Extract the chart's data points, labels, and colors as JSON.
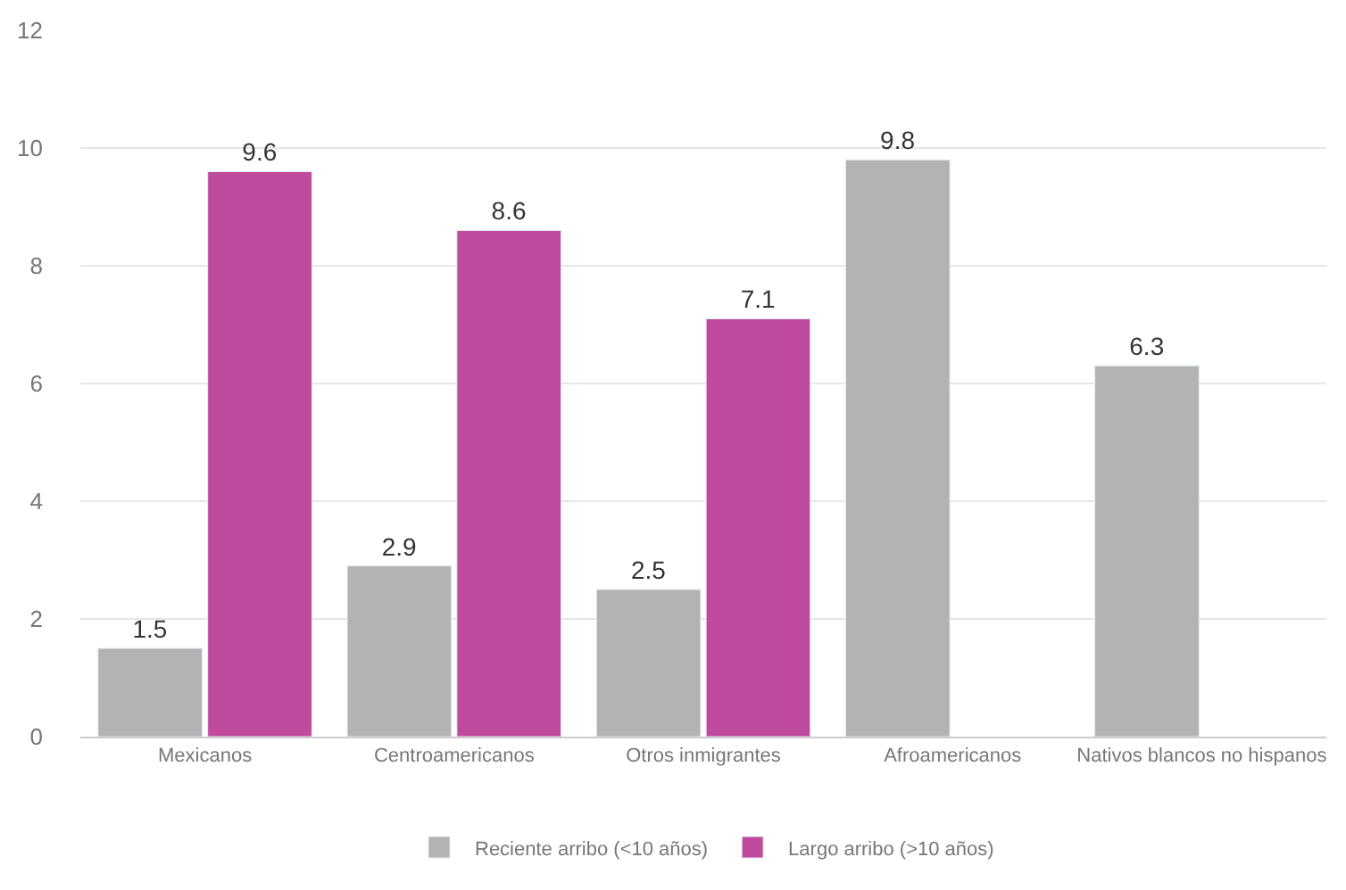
{
  "chart_data": {
    "type": "bar",
    "categories": [
      "Mexicanos",
      "Centroamericanos",
      "Otros inmigrantes",
      "Afroamericanos",
      "Nativos blancos no hispanos"
    ],
    "series": [
      {
        "name": "Reciente arribo (<10 años)",
        "color": "#b3b3b3",
        "values": [
          1.5,
          2.9,
          2.5,
          9.8,
          6.3
        ]
      },
      {
        "name": "Largo arribo (>10 años)",
        "color": "#c04a9e",
        "values": [
          9.6,
          8.6,
          7.1,
          null,
          null
        ]
      }
    ],
    "ylim": [
      0,
      12
    ],
    "yticks": [
      0,
      2,
      4,
      6,
      8,
      10,
      12
    ],
    "grid": "y",
    "legend": "bottom",
    "data_labels": true
  }
}
